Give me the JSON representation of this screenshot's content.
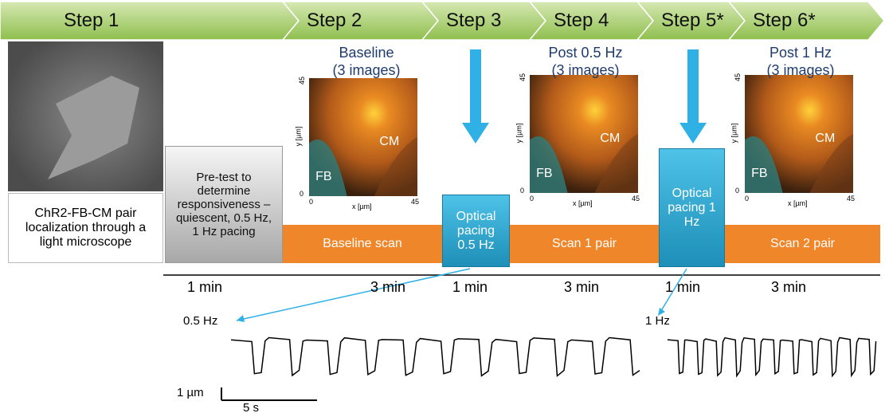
{
  "steps": [
    "Step 1",
    "Step 2",
    "Step 3",
    "Step 4",
    "Step 5*",
    "Step 6*"
  ],
  "microscope_caption": "ChR2-FB-CM pair localization through a light microscope",
  "pretest": "Pre-test to determine responsiveness – quiescent, 0.5 Hz, 1 Hz pacing",
  "panels": [
    {
      "title": [
        "Baseline",
        "(3 images)"
      ],
      "y_label": "y [µm]",
      "x_label": "x [µm]",
      "y_max": "45",
      "y_min": "0",
      "x_min": "0",
      "x_max": "45",
      "labels": [
        "CM",
        "FB"
      ]
    },
    {
      "title": [
        "Post 0.5 Hz",
        "(3 images)"
      ],
      "y_label": "y [µm]",
      "x_label": "x [µm]",
      "y_max": "45",
      "y_min": "0",
      "x_min": "0",
      "x_max": "45",
      "labels": [
        "CM",
        "FB"
      ]
    },
    {
      "title": [
        "Post 1 Hz",
        "(3 images)"
      ],
      "y_label": "y [µm]",
      "x_label": "x [µm]",
      "y_max": "45",
      "y_min": "0",
      "x_min": "0",
      "x_max": "45",
      "labels": [
        "CM",
        "FB"
      ]
    }
  ],
  "scans": [
    "Baseline scan",
    "Scan 1 pair",
    "Scan 2 pair"
  ],
  "pacing": [
    "Optical pacing 0.5 Hz",
    "Optical pacing 1 Hz"
  ],
  "times": [
    "1 min",
    "3 min",
    "1 min",
    "3 min",
    "1 min",
    "3 min"
  ],
  "traces": {
    "labels": [
      "0.5 Hz",
      "1 Hz"
    ],
    "scale_y": "1 µm",
    "scale_x": "5 s"
  }
}
